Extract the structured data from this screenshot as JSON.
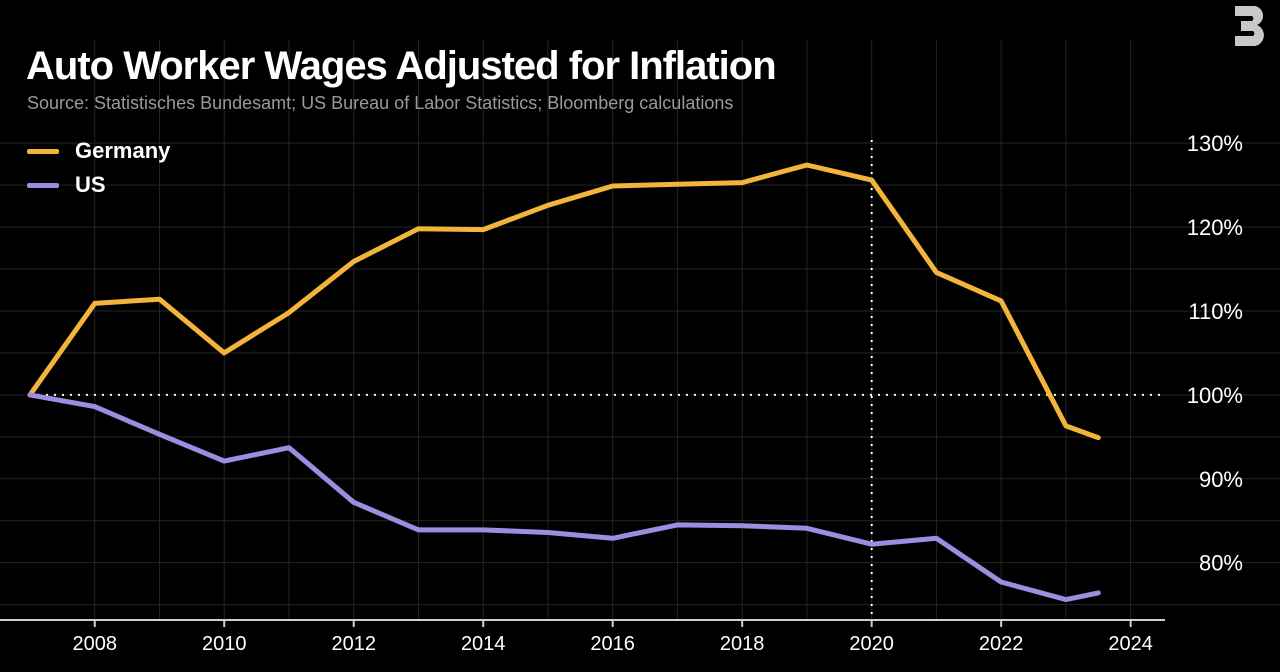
{
  "header": {
    "title": "Auto Worker Wages Adjusted for Inflation",
    "subtitle": "Source: Statistisches Bundesamt; US Bureau of Labor Statistics; Bloomberg calculations"
  },
  "logo": {
    "icon": "bloomberg-b-logo",
    "color": "#c8c8c8"
  },
  "colors": {
    "background": "#000000",
    "grid": "#242424",
    "germany": "#f2b43b",
    "us": "#9b8ee0",
    "reference": "#ffffff",
    "tick_text": "#ffffff"
  },
  "chart_data": {
    "type": "line",
    "x_tick_labels": [
      "2008",
      "2010",
      "2012",
      "2014",
      "2016",
      "2018",
      "2020",
      "2022",
      "2024"
    ],
    "y_tick_labels": [
      "130%",
      "120%",
      "110%",
      "100%",
      "90%",
      "80%"
    ],
    "xlim": [
      2007,
      2024.5
    ],
    "ylim": [
      74,
      133
    ],
    "y_ticks": [
      130,
      120,
      110,
      100,
      90,
      80
    ],
    "x_ticks": [
      2008,
      2010,
      2012,
      2014,
      2016,
      2018,
      2020,
      2022,
      2024
    ],
    "reference_lines": [
      {
        "axis": "y",
        "value": 100
      },
      {
        "axis": "x",
        "value": 2020
      }
    ],
    "grid": true,
    "legend_position": "top-left",
    "series": [
      {
        "name": "Germany",
        "x": [
          2007,
          2008,
          2009,
          2010,
          2011,
          2012,
          2013,
          2014,
          2015,
          2016,
          2017,
          2018,
          2019,
          2020,
          2021,
          2022,
          2023,
          2023.5
        ],
        "values": [
          100,
          110.9,
          111.4,
          105,
          109.8,
          115.9,
          119.8,
          119.7,
          122.6,
          124.9,
          125.1,
          125.3,
          127.4,
          125.6,
          114.6,
          111.2,
          96.3,
          94.9
        ]
      },
      {
        "name": "US",
        "x": [
          2007,
          2008,
          2009,
          2010,
          2011,
          2012,
          2013,
          2014,
          2015,
          2016,
          2017,
          2018,
          2019,
          2020,
          2021,
          2022,
          2023,
          2023.5
        ],
        "values": [
          100,
          98.6,
          95.3,
          92.1,
          93.7,
          87.2,
          83.9,
          83.9,
          83.6,
          82.9,
          84.5,
          84.4,
          84.1,
          82.2,
          82.9,
          77.7,
          75.6,
          76.4
        ]
      }
    ]
  }
}
